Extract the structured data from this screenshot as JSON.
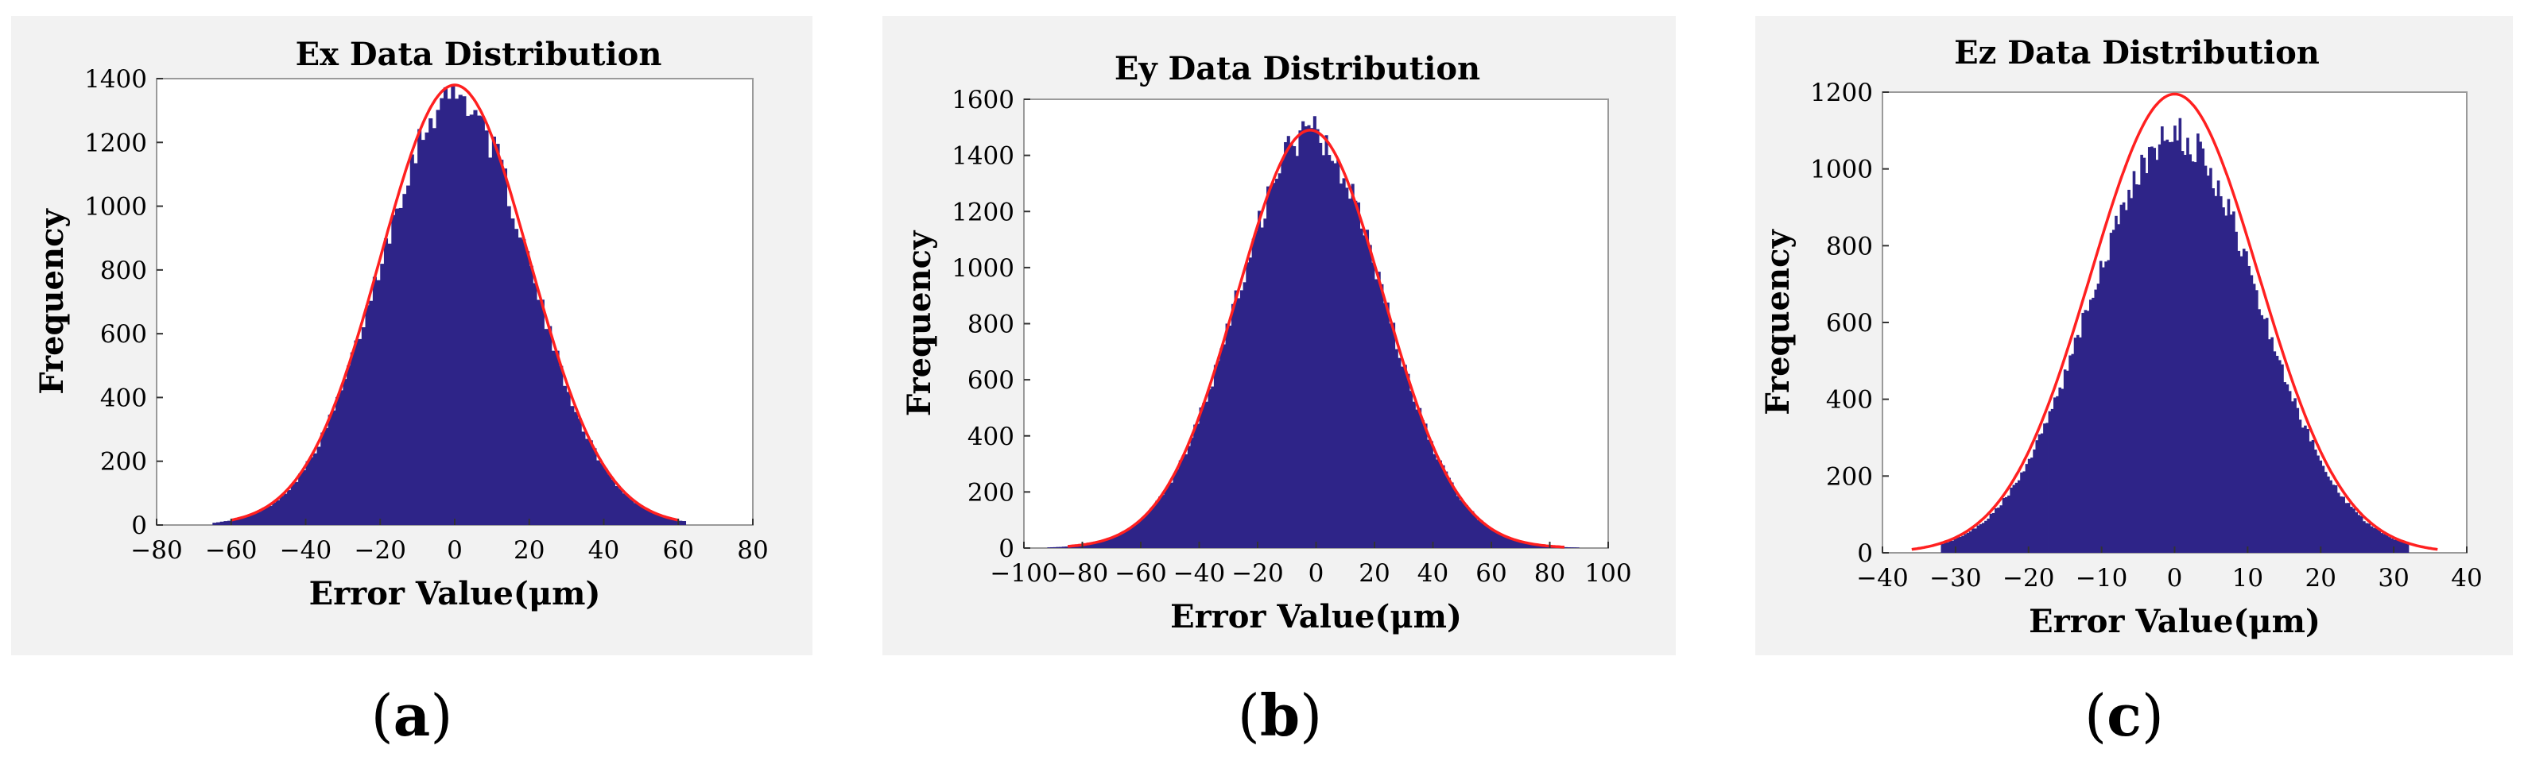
{
  "colors": {
    "bar": "#2e2488",
    "fit": "#ff2020",
    "panel_bg": "#f2f2f2",
    "plot_bg": "#ffffff"
  },
  "captions": [
    {
      "open": "(",
      "letter": "a",
      "close": ")"
    },
    {
      "open": "(",
      "letter": "b",
      "close": ")"
    },
    {
      "open": "(",
      "letter": "c",
      "close": ")"
    }
  ],
  "chart_data": [
    {
      "type": "bar",
      "title": "Ex Data Distribution",
      "xlabel": "Error Value(μm)",
      "ylabel": "Frequency",
      "xlim": [
        -80,
        80
      ],
      "ylim": [
        0,
        1400
      ],
      "xticks": [
        -80,
        -60,
        -40,
        -20,
        0,
        20,
        40,
        60,
        80
      ],
      "yticks": [
        0,
        200,
        400,
        600,
        800,
        1000,
        1200,
        1400
      ],
      "xtick_labels": [
        "−80",
        "−60",
        "−40",
        "−20",
        "0",
        "20",
        "40",
        "60",
        "80"
      ],
      "ytick_labels": [
        "0",
        "200",
        "400",
        "600",
        "800",
        "1000",
        "1200",
        "1400"
      ],
      "fit": {
        "type": "normal",
        "mean": 0,
        "sigma": 20,
        "peak": 1380,
        "range": [
          -60,
          60
        ]
      },
      "hist_range": [
        -65,
        62
      ],
      "bin_width": 1,
      "peak_count": 1350
    },
    {
      "type": "bar",
      "title": "Ey Data Distribution",
      "xlabel": "Error Value(μm)",
      "ylabel": "Frequency",
      "xlim": [
        -100,
        100
      ],
      "ylim": [
        0,
        1600
      ],
      "xticks": [
        -100,
        -80,
        -60,
        -40,
        -20,
        0,
        20,
        40,
        60,
        80,
        100
      ],
      "yticks": [
        0,
        200,
        400,
        600,
        800,
        1000,
        1200,
        1400,
        1600
      ],
      "xtick_labels": [
        "−100",
        "−80",
        "−60",
        "−40",
        "−20",
        "0",
        "20",
        "40",
        "60",
        "80",
        "100"
      ],
      "ytick_labels": [
        "0",
        "200",
        "400",
        "600",
        "800",
        "1000",
        "1200",
        "1400",
        "1600"
      ],
      "fit": {
        "type": "normal",
        "mean": -2,
        "sigma": 25,
        "peak": 1490,
        "range": [
          -85,
          85
        ]
      },
      "hist_range": [
        -92,
        90
      ],
      "bin_width": 1,
      "peak_count": 1480
    },
    {
      "type": "bar",
      "title": "Ez Data Distribution",
      "xlabel": "Error Value(μm)",
      "ylabel": "Frequency",
      "xlim": [
        -40,
        40
      ],
      "ylim": [
        0,
        1200
      ],
      "xticks": [
        -40,
        -30,
        -20,
        -10,
        0,
        10,
        20,
        30,
        40
      ],
      "yticks": [
        0,
        200,
        400,
        600,
        800,
        1000,
        1200
      ],
      "xtick_labels": [
        "−40",
        "−30",
        "−20",
        "−10",
        "0",
        "10",
        "20",
        "30",
        "40"
      ],
      "ytick_labels": [
        "0",
        "200",
        "400",
        "600",
        "800",
        "1000",
        "1200"
      ],
      "fit": {
        "type": "normal",
        "mean": 0,
        "sigma": 11.5,
        "peak": 1195,
        "range": [
          -36,
          36
        ]
      },
      "hist_range": [
        -32,
        32
      ],
      "bin_width": 0.35,
      "peak_count": 1090
    }
  ]
}
